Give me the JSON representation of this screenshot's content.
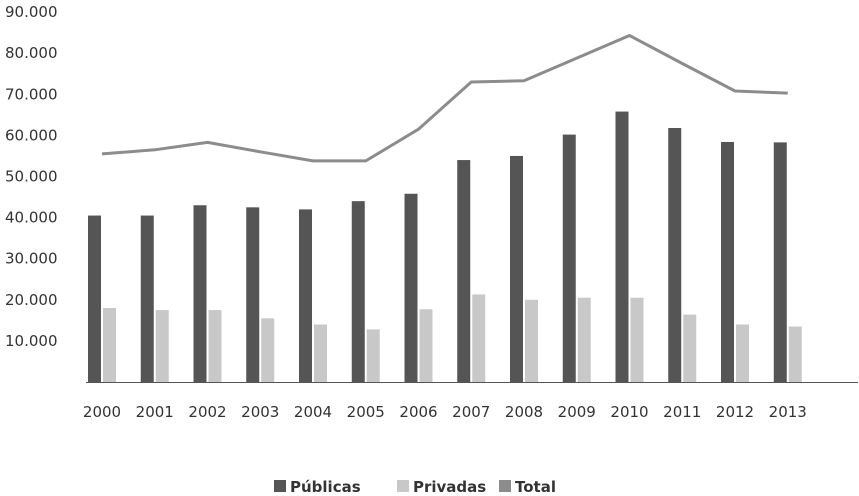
{
  "chart_data": {
    "type": "bar",
    "categories": [
      "2000",
      "2001",
      "2002",
      "2003",
      "2004",
      "2005",
      "2006",
      "2007",
      "2008",
      "2009",
      "2010",
      "2011",
      "2012",
      "2013"
    ],
    "series": [
      {
        "name": "Públicas",
        "type": "bar",
        "color": "#555555",
        "values": [
          40500,
          40500,
          43000,
          42500,
          42000,
          44000,
          45800,
          54000,
          55000,
          60200,
          65800,
          61800,
          58400,
          58300
        ]
      },
      {
        "name": "Privadas",
        "type": "bar",
        "color": "#c8c8c8",
        "values": [
          18000,
          17500,
          17500,
          15500,
          14000,
          12800,
          17700,
          21300,
          20000,
          20500,
          20500,
          16400,
          14000,
          13500
        ]
      },
      {
        "name": "Total",
        "type": "line",
        "color": "#8c8c8c",
        "values": [
          55500,
          56500,
          58300,
          56000,
          53800,
          53800,
          61500,
          73000,
          73300,
          78800,
          84300,
          77500,
          70800,
          70300
        ]
      }
    ],
    "yaxis": {
      "min": 0,
      "max": 90000,
      "ticks": [
        10000,
        20000,
        30000,
        40000,
        50000,
        60000,
        70000,
        80000,
        90000
      ],
      "tick_labels": [
        "10.000",
        "20.000",
        "30.000",
        "40.000",
        "50.000",
        "60.000",
        "70.000",
        "80.000",
        "90.000"
      ]
    },
    "title": "",
    "xlabel": "",
    "ylabel": "",
    "grid": false,
    "legend": {
      "position": "bottom-center",
      "entries": [
        "Públicas",
        "Privadas",
        "Total"
      ]
    }
  }
}
